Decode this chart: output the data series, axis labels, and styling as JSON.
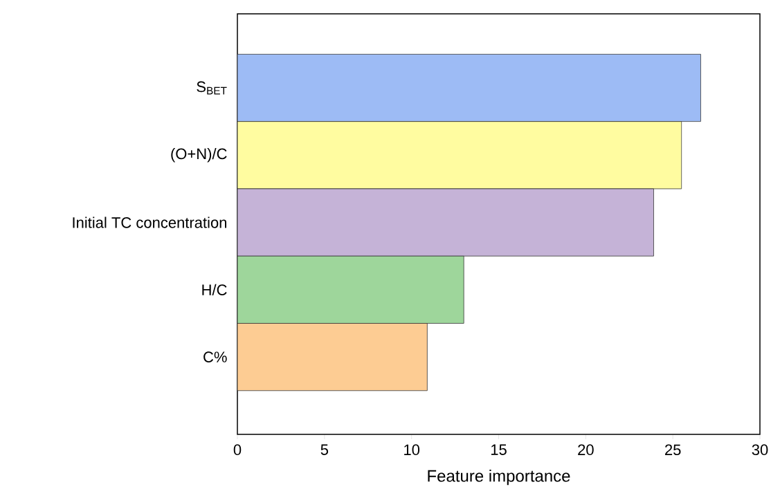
{
  "chart_data": {
    "type": "bar",
    "orientation": "horizontal",
    "xlabel": "Feature importance",
    "categories": [
      "S$_{BET}$",
      "(O+N)/C",
      "Initial TC concentration",
      "H/C",
      "C%"
    ],
    "values": [
      26.6,
      25.5,
      23.9,
      13.0,
      10.9
    ],
    "colors": [
      "#9dbbf5",
      "#fffca0",
      "#c5b3d7",
      "#9ed69b",
      "#fdcc93"
    ],
    "xlim": [
      0,
      30
    ],
    "xticks": [
      0,
      5,
      10,
      15,
      20,
      25,
      30
    ]
  }
}
